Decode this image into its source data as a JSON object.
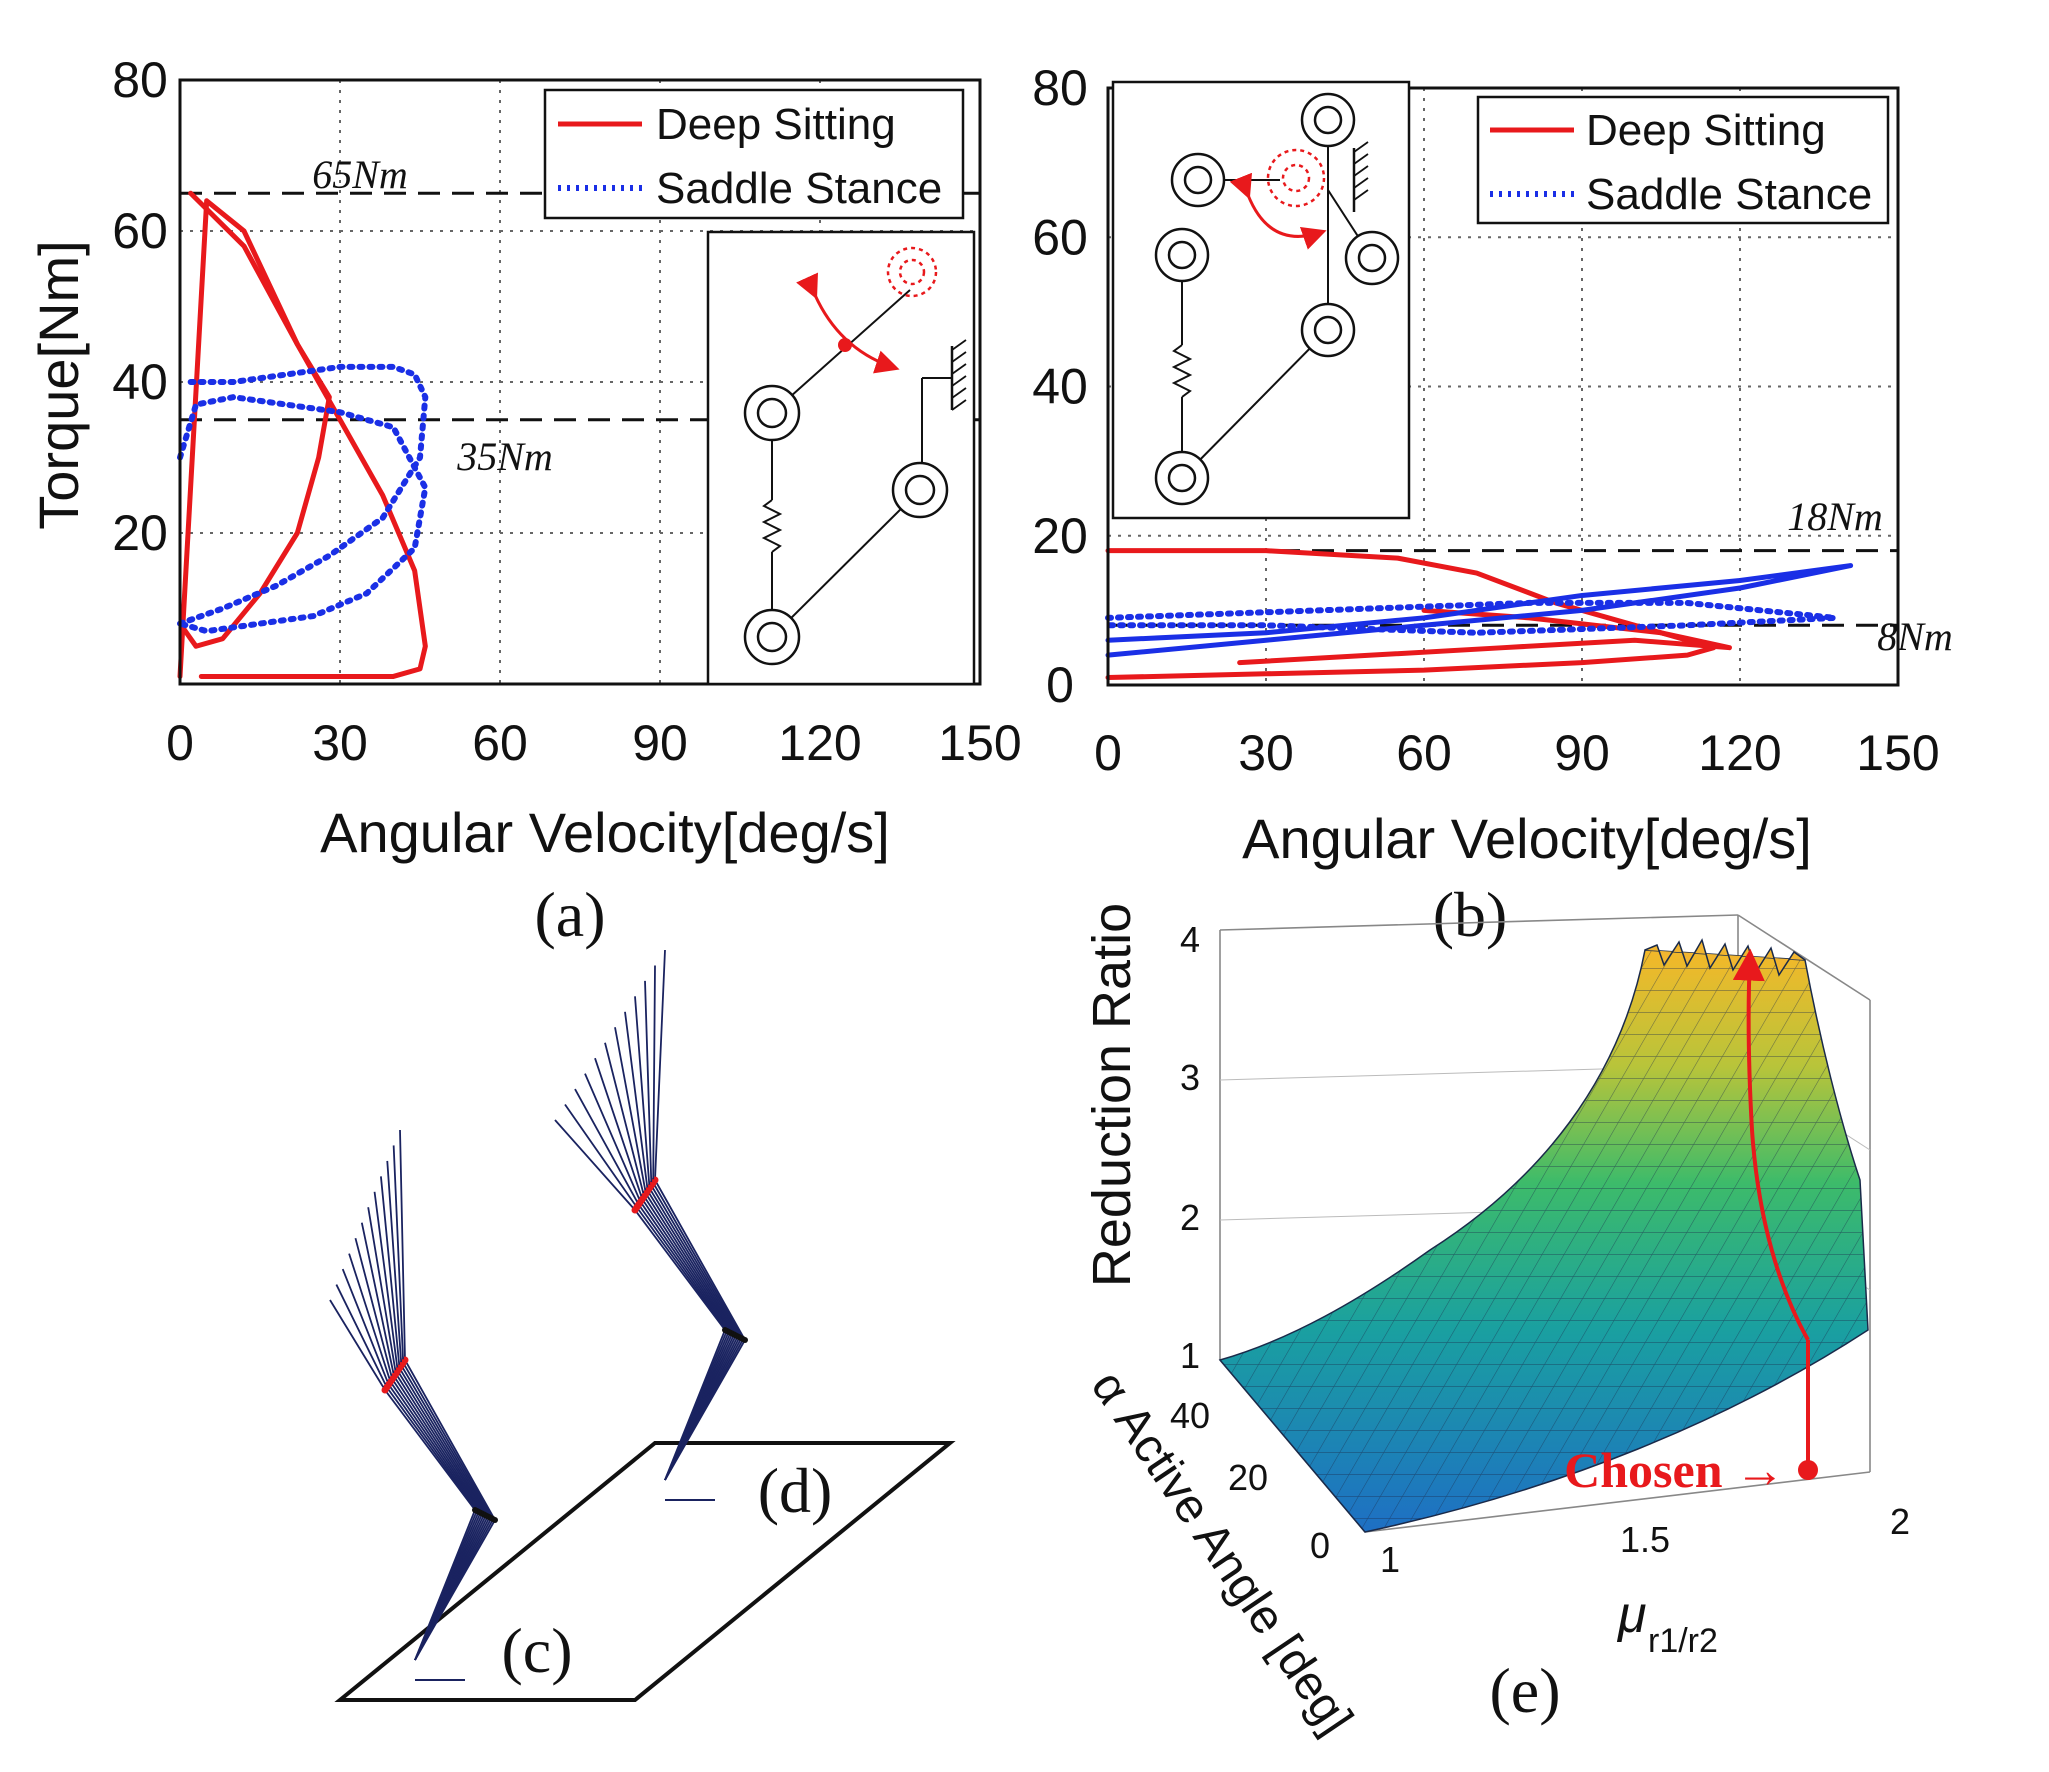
{
  "chart_data": [
    {
      "id": "a",
      "type": "line",
      "panel_label": "(a)",
      "xlabel": "Angular Velocity[deg/s]",
      "ylabel": "Torque[Nm]",
      "xlim": [
        0,
        150
      ],
      "ylim": [
        0,
        80
      ],
      "xticks": [
        0,
        30,
        60,
        90,
        120,
        150
      ],
      "yticks": [
        20,
        40,
        60,
        80
      ],
      "grid": true,
      "legend_position": "top-right",
      "reference_lines": [
        {
          "value": 65,
          "label": "65Nm"
        },
        {
          "value": 35,
          "label": "35Nm"
        }
      ],
      "series": [
        {
          "name": "Deep Sitting",
          "style": "solid",
          "color": "#e8191c",
          "x": [
            0,
            5,
            12,
            22,
            30,
            38,
            44,
            46,
            45,
            40,
            30,
            20,
            10,
            4
          ],
          "y": [
            1,
            64,
            60,
            45,
            35,
            25,
            15,
            5,
            2,
            1,
            1,
            1,
            1,
            1
          ]
        },
        {
          "name": "Deep Sitting",
          "style": "solid",
          "color": "#e8191c",
          "x": [
            2,
            12,
            22,
            28,
            26,
            22,
            15,
            8,
            3,
            0
          ],
          "y": [
            65,
            58,
            45,
            38,
            30,
            20,
            12,
            6,
            5,
            8
          ]
        },
        {
          "name": "Saddle Stance",
          "style": "dotted",
          "color": "#1a2fe6",
          "x": [
            0,
            8,
            18,
            28,
            38,
            45,
            46,
            44,
            40,
            30,
            20,
            10,
            2
          ],
          "y": [
            8,
            10,
            13,
            17,
            22,
            30,
            38,
            41,
            42,
            42,
            41,
            40,
            40
          ]
        },
        {
          "name": "Saddle Stance",
          "style": "dotted",
          "color": "#1a2fe6",
          "x": [
            0,
            3,
            10,
            20,
            30,
            40,
            46,
            44,
            35,
            25,
            15,
            5,
            0
          ],
          "y": [
            30,
            37,
            38,
            37,
            36,
            34,
            26,
            18,
            12,
            9,
            8,
            7,
            8
          ]
        }
      ]
    },
    {
      "id": "b",
      "type": "line",
      "panel_label": "(b)",
      "xlabel": "Angular Velocity[deg/s]",
      "ylabel": "",
      "xlim": [
        0,
        150
      ],
      "ylim": [
        0,
        80
      ],
      "xticks": [
        0,
        30,
        60,
        90,
        120,
        150
      ],
      "yticks": [
        0,
        20,
        40,
        60,
        80
      ],
      "grid": true,
      "legend_position": "top-right",
      "reference_lines": [
        {
          "value": 18,
          "label": "18Nm"
        },
        {
          "value": 8,
          "label": "8Nm"
        }
      ],
      "series": [
        {
          "name": "Deep Sitting",
          "style": "solid",
          "color": "#e8191c",
          "x": [
            0,
            30,
            55,
            70,
            85,
            100,
            115,
            110,
            90,
            60,
            30,
            0
          ],
          "y": [
            18,
            18,
            17,
            15,
            11,
            8,
            5,
            4,
            3,
            2,
            1.5,
            1
          ]
        },
        {
          "name": "Deep Sitting",
          "style": "solid",
          "color": "#e8191c",
          "x": [
            25,
            50,
            75,
            100,
            118,
            105,
            80,
            60
          ],
          "y": [
            3,
            4,
            5,
            6,
            5,
            7,
            9,
            10
          ]
        },
        {
          "name": "Saddle Stance",
          "style": "solid",
          "color": "#1a2fe6",
          "x": [
            0,
            30,
            60,
            90,
            120,
            141,
            120,
            90,
            60,
            30,
            0
          ],
          "y": [
            4,
            6,
            8,
            10,
            13,
            16,
            14,
            12,
            9,
            7,
            6
          ]
        },
        {
          "name": "Saddle Stance",
          "style": "dotted",
          "color": "#1a2fe6",
          "x": [
            0,
            40,
            80,
            110,
            138,
            110,
            70,
            30,
            0
          ],
          "y": [
            9,
            10,
            11,
            11,
            9,
            8,
            7,
            8,
            8
          ]
        }
      ]
    },
    {
      "id": "e",
      "type": "surface",
      "panel_label": "(e)",
      "zlabel": "Reduction Ratio",
      "ylabel": "α Active Angle [deg]",
      "xlabel_main": "μ",
      "xlabel_sub": "r1/r2",
      "xticks": [
        "1",
        "1.5",
        "2"
      ],
      "yticks": [
        "0",
        "20",
        "40"
      ],
      "zticks": [
        "1",
        "2",
        "3",
        "4"
      ],
      "annotation": "Chosen →"
    }
  ],
  "legend": {
    "deep_sitting": "Deep Sitting",
    "saddle_stance": "Saddle Stance"
  },
  "panel_c_label": "(c)",
  "panel_d_label": "(d)",
  "colors": {
    "red": "#e8191c",
    "blue": "#1a2fe6",
    "navy": "#1a2360"
  }
}
